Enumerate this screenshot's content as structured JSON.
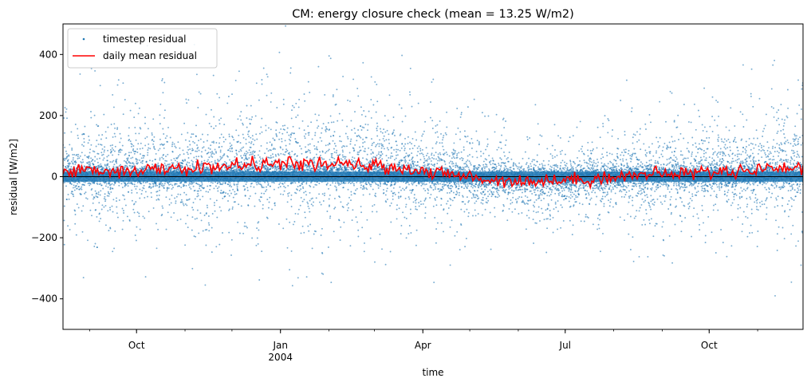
{
  "chart_data": {
    "type": "scatter",
    "title": "CM: energy closure check (mean = 13.25 W/m2)",
    "xlabel": "time",
    "ylabel": "residual [W/m2]",
    "xlim": [
      "2003-08-15",
      "2004-11-30"
    ],
    "ylim": [
      -500,
      500
    ],
    "y_ticks": [
      -400,
      -200,
      0,
      200,
      400
    ],
    "y_tick_labels": [
      "−400",
      "−200",
      "0",
      "200",
      "400"
    ],
    "x_ticks": [
      {
        "date": "2003-10-01",
        "label": "Oct",
        "sublabel": ""
      },
      {
        "date": "2004-01-01",
        "label": "Jan",
        "sublabel": "2004"
      },
      {
        "date": "2004-04-01",
        "label": "Apr",
        "sublabel": ""
      },
      {
        "date": "2004-07-01",
        "label": "Jul",
        "sublabel": ""
      },
      {
        "date": "2004-10-01",
        "label": "Oct",
        "sublabel": ""
      }
    ],
    "grid": false,
    "legend_position": "upper-left",
    "zero_reference_line": 0,
    "mean_residual": 13.25,
    "series": [
      {
        "name": "timestep residual",
        "kind": "scatter",
        "color": "#1f77b4",
        "marker": "dot",
        "samples_per_day": 48,
        "typical_spread": {
          "core": [
            -30,
            30
          ],
          "extreme": [
            -410,
            500
          ]
        }
      },
      {
        "name": "daily mean residual",
        "kind": "line",
        "color": "#ff0000",
        "monthly_values": [
          {
            "month": "2003-08",
            "value": 18
          },
          {
            "month": "2003-09",
            "value": 20
          },
          {
            "month": "2003-10",
            "value": 22
          },
          {
            "month": "2003-11",
            "value": 30
          },
          {
            "month": "2003-12",
            "value": 40
          },
          {
            "month": "2004-01",
            "value": 42
          },
          {
            "month": "2004-02",
            "value": 38
          },
          {
            "month": "2004-03",
            "value": 30
          },
          {
            "month": "2004-04",
            "value": 8
          },
          {
            "month": "2004-05",
            "value": -10
          },
          {
            "month": "2004-06",
            "value": -15
          },
          {
            "month": "2004-07",
            "value": -8
          },
          {
            "month": "2004-08",
            "value": 5
          },
          {
            "month": "2004-09",
            "value": 12
          },
          {
            "month": "2004-10",
            "value": 18
          },
          {
            "month": "2004-11",
            "value": 30
          }
        ]
      }
    ]
  }
}
